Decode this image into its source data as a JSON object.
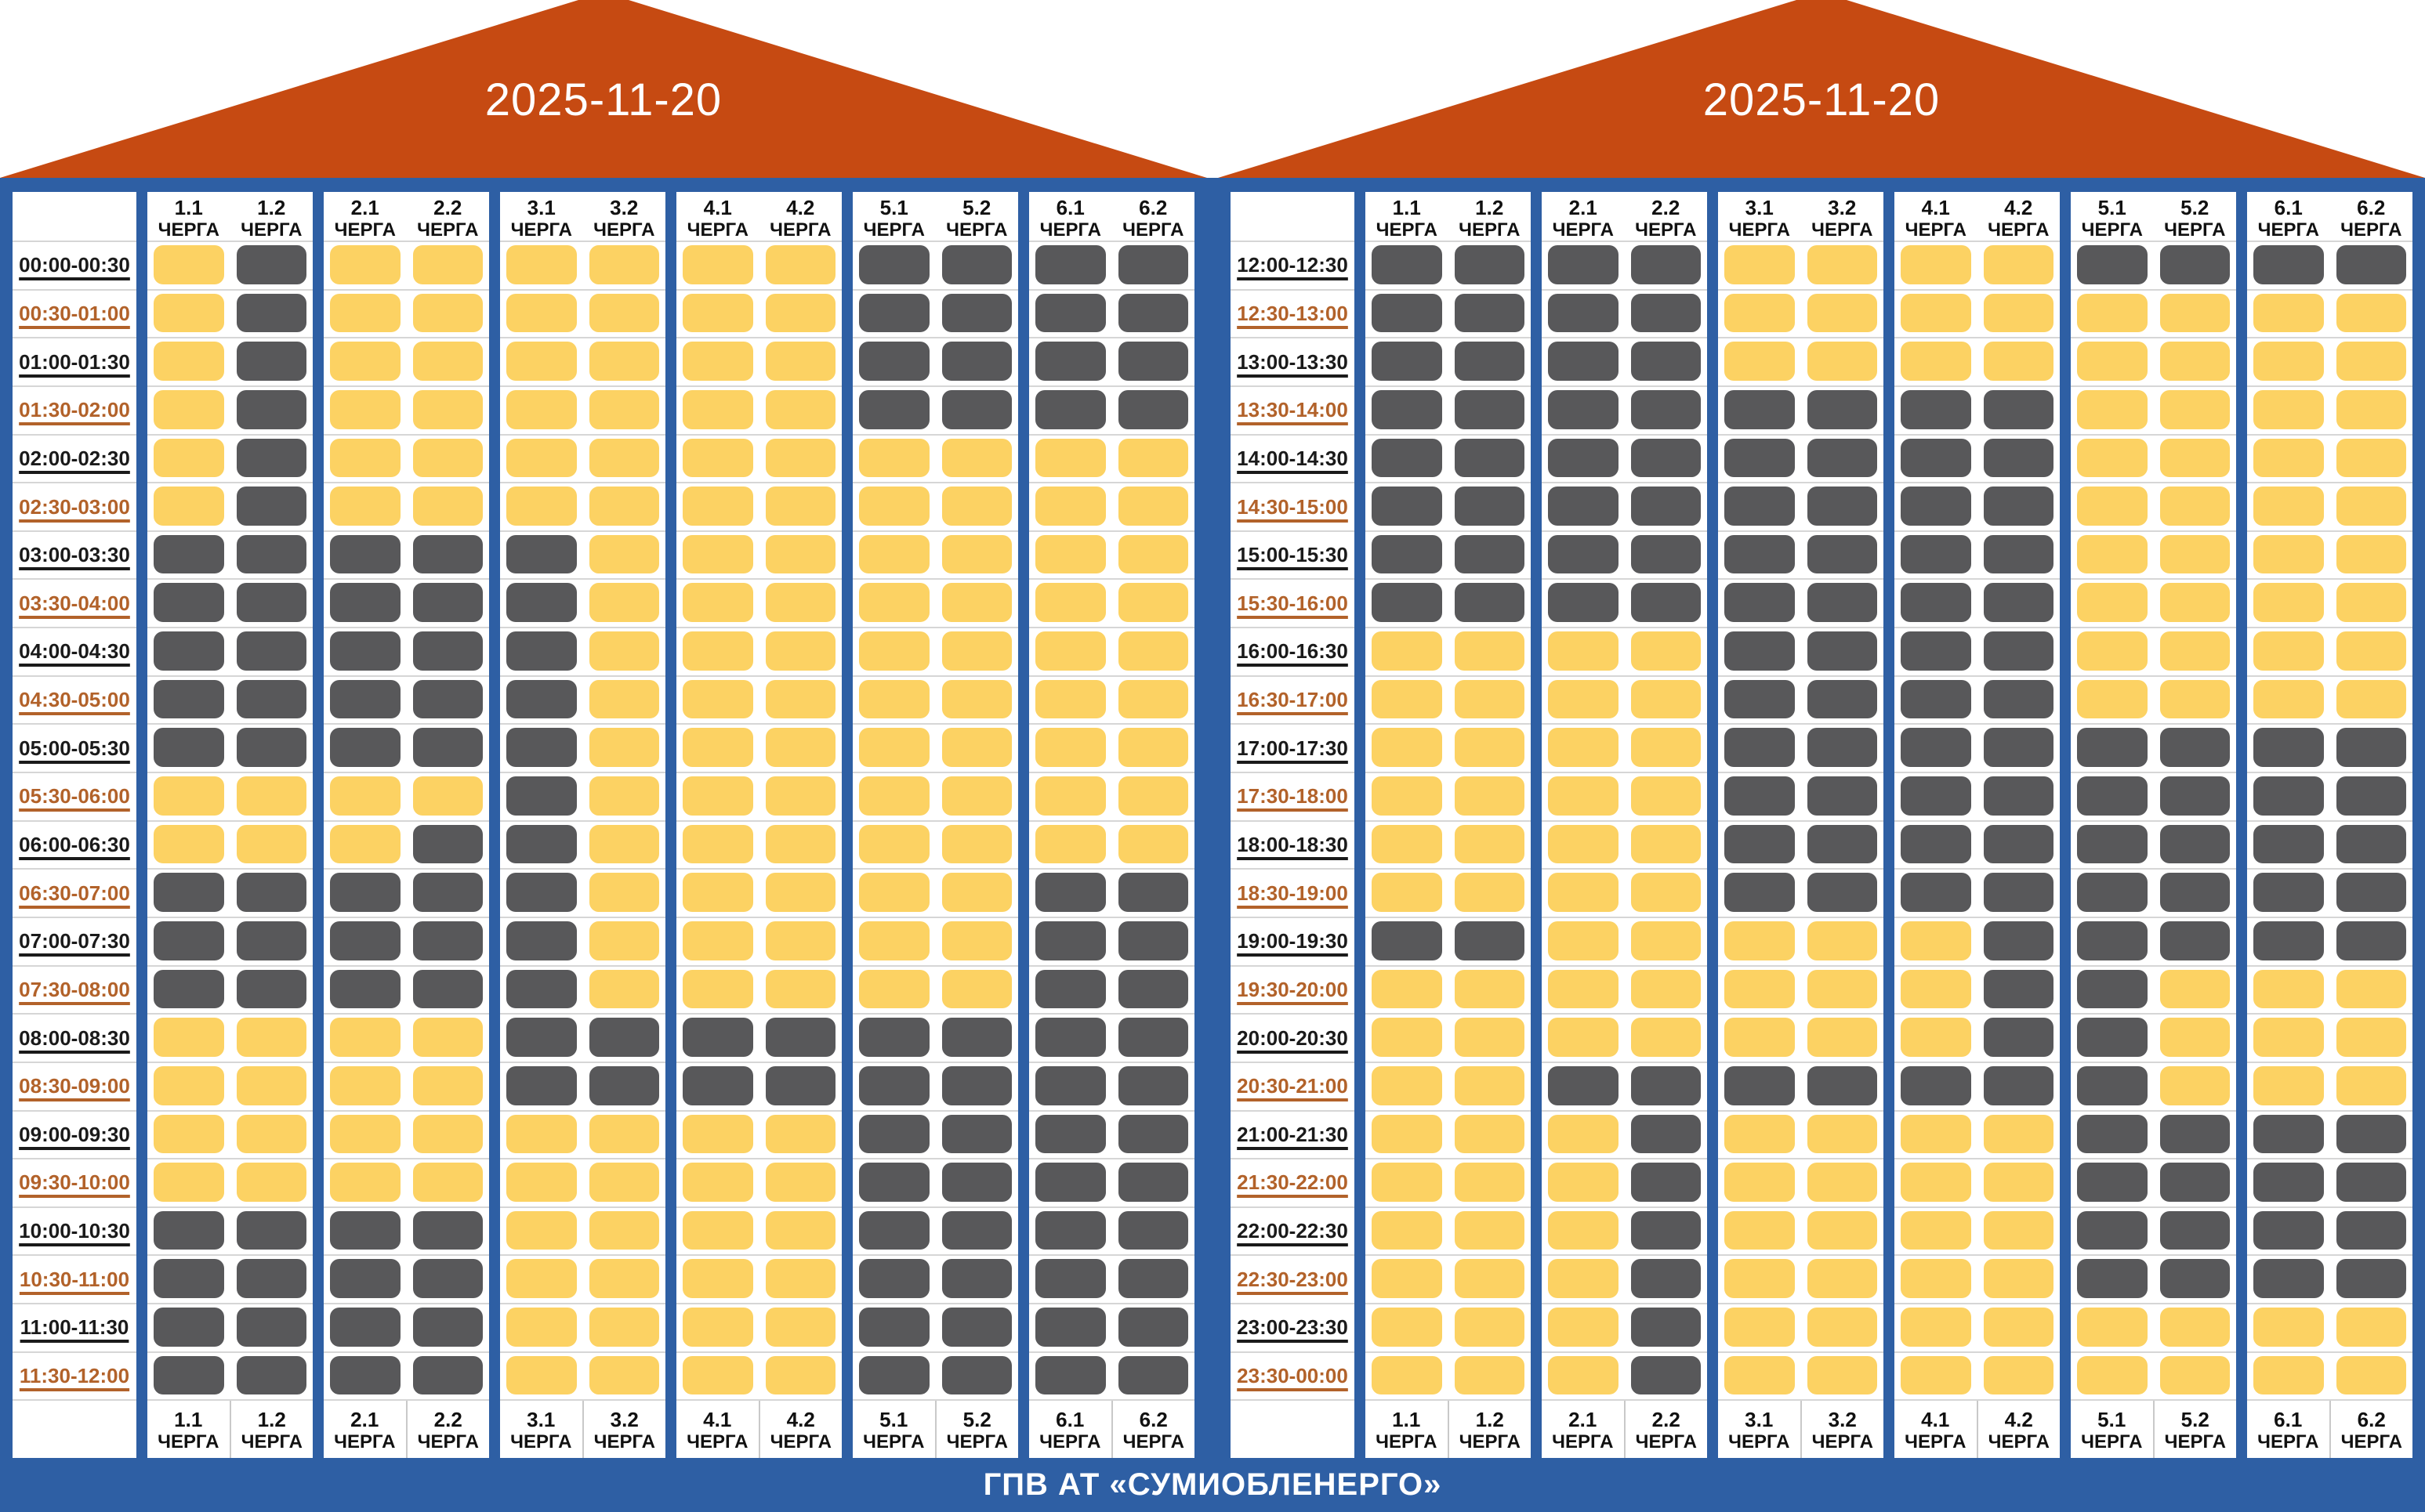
{
  "footer": {
    "label": "ГПВ АТ «СУМИОБЛЕНЕРГО»"
  },
  "colors": {
    "power_on_yellow": "#FCD263",
    "power_off_gray": "#58585A",
    "frame_blue": "#2E5FA4",
    "roof_red": "#C64A12",
    "time_label_black": "#1A1A1A",
    "time_label_orange": "#B2622A"
  },
  "chart_data": {
    "type": "heatmap",
    "cell_encoding": {
      "Y": "power on (#FCD263)",
      "D": "power off (#58585A)"
    },
    "queues": [
      "1.1",
      "1.2",
      "2.1",
      "2.2",
      "3.1",
      "3.2",
      "4.1",
      "4.2",
      "5.1",
      "5.2",
      "6.1",
      "6.2"
    ],
    "queue_word": "ЧЕРГА",
    "panels": [
      {
        "title": "2025-11-20",
        "rows": [
          {
            "time": "00:00-00:30",
            "cells": "YDYYYYYYDDDD"
          },
          {
            "time": "00:30-01:00",
            "cells": "YDYYYYYYDDDD"
          },
          {
            "time": "01:00-01:30",
            "cells": "YDYYYYYYDDDD"
          },
          {
            "time": "01:30-02:00",
            "cells": "YDYYYYYYDDDD"
          },
          {
            "time": "02:00-02:30",
            "cells": "YDYYYYYYYYYY"
          },
          {
            "time": "02:30-03:00",
            "cells": "YDYYYYYYYYYY"
          },
          {
            "time": "03:00-03:30",
            "cells": "DDDDDYYYYYYY"
          },
          {
            "time": "03:30-04:00",
            "cells": "DDDDDYYYYYYY"
          },
          {
            "time": "04:00-04:30",
            "cells": "DDDDDYYYYYYY"
          },
          {
            "time": "04:30-05:00",
            "cells": "DDDDDYYYYYYY"
          },
          {
            "time": "05:00-05:30",
            "cells": "DDDDDYYYYYYY"
          },
          {
            "time": "05:30-06:00",
            "cells": "YYYYDYYYYYYY"
          },
          {
            "time": "06:00-06:30",
            "cells": "YYYDDYYYYYYY"
          },
          {
            "time": "06:30-07:00",
            "cells": "DDDDDYYYYYDD"
          },
          {
            "time": "07:00-07:30",
            "cells": "DDDDDYYYYYDD"
          },
          {
            "time": "07:30-08:00",
            "cells": "DDDDDYYYYYDD"
          },
          {
            "time": "08:00-08:30",
            "cells": "YYYYDDDDDDDD"
          },
          {
            "time": "08:30-09:00",
            "cells": "YYYYDDDDDDDD"
          },
          {
            "time": "09:00-09:30",
            "cells": "YYYYYYYYDDDD"
          },
          {
            "time": "09:30-10:00",
            "cells": "YYYYYYYYDDDD"
          },
          {
            "time": "10:00-10:30",
            "cells": "DDDDYYYYDDDD"
          },
          {
            "time": "10:30-11:00",
            "cells": "DDDDYYYYDDDD"
          },
          {
            "time": "11:00-11:30",
            "cells": "DDDDYYYYDDDD"
          },
          {
            "time": "11:30-12:00",
            "cells": "DDDDYYYYDDDD"
          }
        ]
      },
      {
        "title": "2025-11-20",
        "rows": [
          {
            "time": "12:00-12:30",
            "cells": "DDDDYYYYDDDD"
          },
          {
            "time": "12:30-13:00",
            "cells": "DDDDYYYYYYYY"
          },
          {
            "time": "13:00-13:30",
            "cells": "DDDDYYYYYYYY"
          },
          {
            "time": "13:30-14:00",
            "cells": "DDDDDDDDYYYY"
          },
          {
            "time": "14:00-14:30",
            "cells": "DDDDDDDDYYYY"
          },
          {
            "time": "14:30-15:00",
            "cells": "DDDDDDDDYYYY"
          },
          {
            "time": "15:00-15:30",
            "cells": "DDDDDDDDYYYY"
          },
          {
            "time": "15:30-16:00",
            "cells": "DDDDDDDDYYYY"
          },
          {
            "time": "16:00-16:30",
            "cells": "YYYYDDDDYYYY"
          },
          {
            "time": "16:30-17:00",
            "cells": "YYYYDDDDYYYY"
          },
          {
            "time": "17:00-17:30",
            "cells": "YYYYDDDDDDDD"
          },
          {
            "time": "17:30-18:00",
            "cells": "YYYYDDDDDDDD"
          },
          {
            "time": "18:00-18:30",
            "cells": "YYYYDDDDDDDD"
          },
          {
            "time": "18:30-19:00",
            "cells": "YYYYDDDDDDDD"
          },
          {
            "time": "19:00-19:30",
            "cells": "DDYYYYYDDDDD"
          },
          {
            "time": "19:30-20:00",
            "cells": "YYYYYYYDDYYY"
          },
          {
            "time": "20:00-20:30",
            "cells": "YYYYYYYDDYYY"
          },
          {
            "time": "20:30-21:00",
            "cells": "YYDDDDDDDYYY"
          },
          {
            "time": "21:00-21:30",
            "cells": "YYYDYYYYDDDD"
          },
          {
            "time": "21:30-22:00",
            "cells": "YYYDYYYYDDDD"
          },
          {
            "time": "22:00-22:30",
            "cells": "YYYDYYYYDDDD"
          },
          {
            "time": "22:30-23:00",
            "cells": "YYYDYYYYDDDD"
          },
          {
            "time": "23:00-23:30",
            "cells": "YYYDYYYYYYYY"
          },
          {
            "time": "23:30-00:00",
            "cells": "YYYDYYYYYYYY"
          }
        ]
      }
    ]
  }
}
